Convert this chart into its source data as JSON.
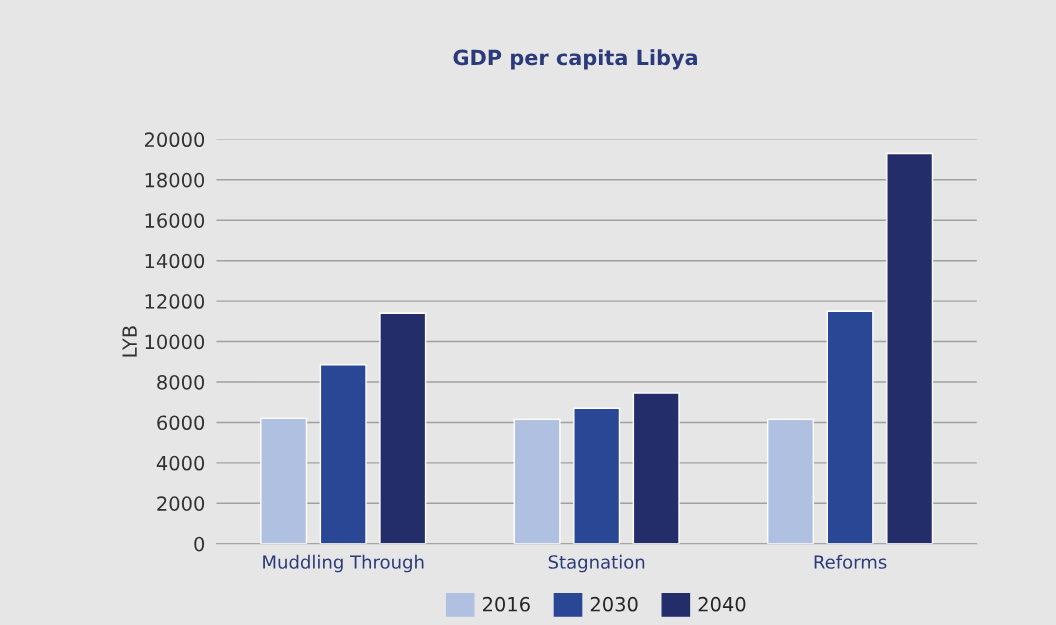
{
  "chart_data": {
    "type": "bar",
    "title": "GDP per capita Libya",
    "ylabel": "LYB",
    "categories": [
      "Muddling Through",
      "Stagnation",
      "Reforms"
    ],
    "series": [
      {
        "name": "2016",
        "color": "#b0c0e0",
        "values": [
          6200,
          6150,
          6150
        ]
      },
      {
        "name": "2030",
        "color": "#2a4795",
        "values": [
          8850,
          6700,
          11500
        ]
      },
      {
        "name": "2040",
        "color": "#232d6a",
        "values": [
          11400,
          7450,
          19300
        ]
      }
    ],
    "ylim": [
      0,
      20000
    ],
    "yticks": [
      0,
      2000,
      4000,
      6000,
      8000,
      10000,
      12000,
      14000,
      16000,
      18000,
      20000
    ],
    "grid": "y",
    "legend": "bottom"
  }
}
